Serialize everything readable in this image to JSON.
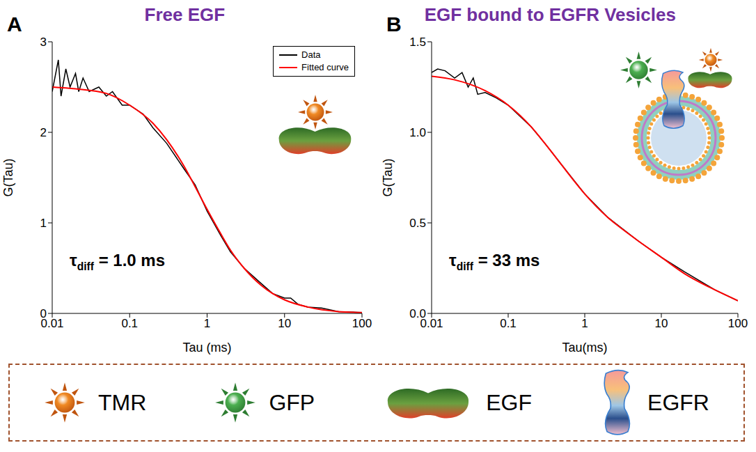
{
  "chart_data": [
    {
      "panel": "A",
      "type": "line",
      "title": "Free EGF",
      "x_label": "Tau (ms)",
      "y_label": "G(Tau)",
      "log": "x",
      "xlim": [
        0.01,
        100
      ],
      "xticks": [
        0.01,
        0.1,
        1,
        10,
        100
      ],
      "ylim": [
        0,
        3
      ],
      "yticks": [
        0,
        1,
        2,
        3
      ],
      "legend": "upper right",
      "annotations": [
        "τdiff = 1.0 ms"
      ],
      "series": [
        {
          "name": "Data",
          "color": "#000000",
          "line_style": "solid",
          "x": [
            0.01,
            0.012,
            0.013,
            0.015,
            0.017,
            0.02,
            0.022,
            0.025,
            0.03,
            0.04,
            0.05,
            0.06,
            0.08,
            0.1,
            0.15,
            0.2,
            0.3,
            0.5,
            0.7,
            1,
            1.5,
            2,
            3,
            5,
            7,
            10,
            12,
            15,
            20,
            30,
            50,
            100
          ],
          "values": [
            2.45,
            2.8,
            2.4,
            2.7,
            2.5,
            2.65,
            2.45,
            2.6,
            2.45,
            2.5,
            2.4,
            2.45,
            2.3,
            2.3,
            2.2,
            2.05,
            1.88,
            1.6,
            1.42,
            1.13,
            0.86,
            0.68,
            0.5,
            0.33,
            0.22,
            0.17,
            0.17,
            0.1,
            0.07,
            0.06,
            0.02,
            0.01
          ]
        },
        {
          "name": "Fitted curve",
          "color": "#ff0000",
          "line_style": "solid",
          "x": [
            0.01,
            0.02,
            0.05,
            0.1,
            0.2,
            0.3,
            0.5,
            0.7,
            1,
            1.5,
            2,
            3,
            5,
            7,
            10,
            20,
            50,
            100
          ],
          "values": [
            2.5,
            2.48,
            2.43,
            2.3,
            2.1,
            1.92,
            1.63,
            1.4,
            1.15,
            0.88,
            0.7,
            0.5,
            0.31,
            0.22,
            0.15,
            0.07,
            0.02,
            0.01
          ]
        }
      ]
    },
    {
      "panel": "B",
      "type": "line",
      "title": "EGF bound to EGFR Vesicles",
      "x_label": "Tau(ms)",
      "y_label": "G(Tau)",
      "log": "x",
      "xlim": [
        0.01,
        100
      ],
      "xticks": [
        0.01,
        0.1,
        1,
        10,
        100
      ],
      "ylim": [
        0,
        1.5
      ],
      "yticks": [
        {
          "value": 0,
          "label": "0.0"
        },
        0.5,
        {
          "value": 1,
          "label": "1.0"
        },
        1.5
      ],
      "annotations": [
        "τdiff = 33 ms"
      ],
      "series": [
        {
          "color": "#000000",
          "line_style": "solid",
          "x": [
            0.01,
            0.012,
            0.015,
            0.02,
            0.025,
            0.03,
            0.035,
            0.04,
            0.05,
            0.07,
            0.1,
            0.15,
            0.2,
            0.3,
            0.5,
            1,
            2,
            5,
            10,
            20,
            50,
            100
          ],
          "values": [
            1.33,
            1.35,
            1.34,
            1.3,
            1.33,
            1.25,
            1.3,
            1.21,
            1.22,
            1.19,
            1.15,
            1.08,
            1.03,
            0.94,
            0.82,
            0.66,
            0.53,
            0.4,
            0.31,
            0.23,
            0.13,
            0.07
          ]
        },
        {
          "color": "#ff0000",
          "line_style": "solid",
          "x": [
            0.01,
            0.02,
            0.05,
            0.1,
            0.2,
            0.3,
            0.5,
            0.7,
            1,
            2,
            3,
            5,
            10,
            20,
            50,
            100
          ],
          "values": [
            1.31,
            1.29,
            1.23,
            1.15,
            1.03,
            0.94,
            0.82,
            0.74,
            0.66,
            0.53,
            0.47,
            0.4,
            0.31,
            0.22,
            0.13,
            0.07
          ]
        }
      ]
    }
  ],
  "key": [
    "TMR",
    "GFP",
    "EGF",
    "EGFR"
  ]
}
